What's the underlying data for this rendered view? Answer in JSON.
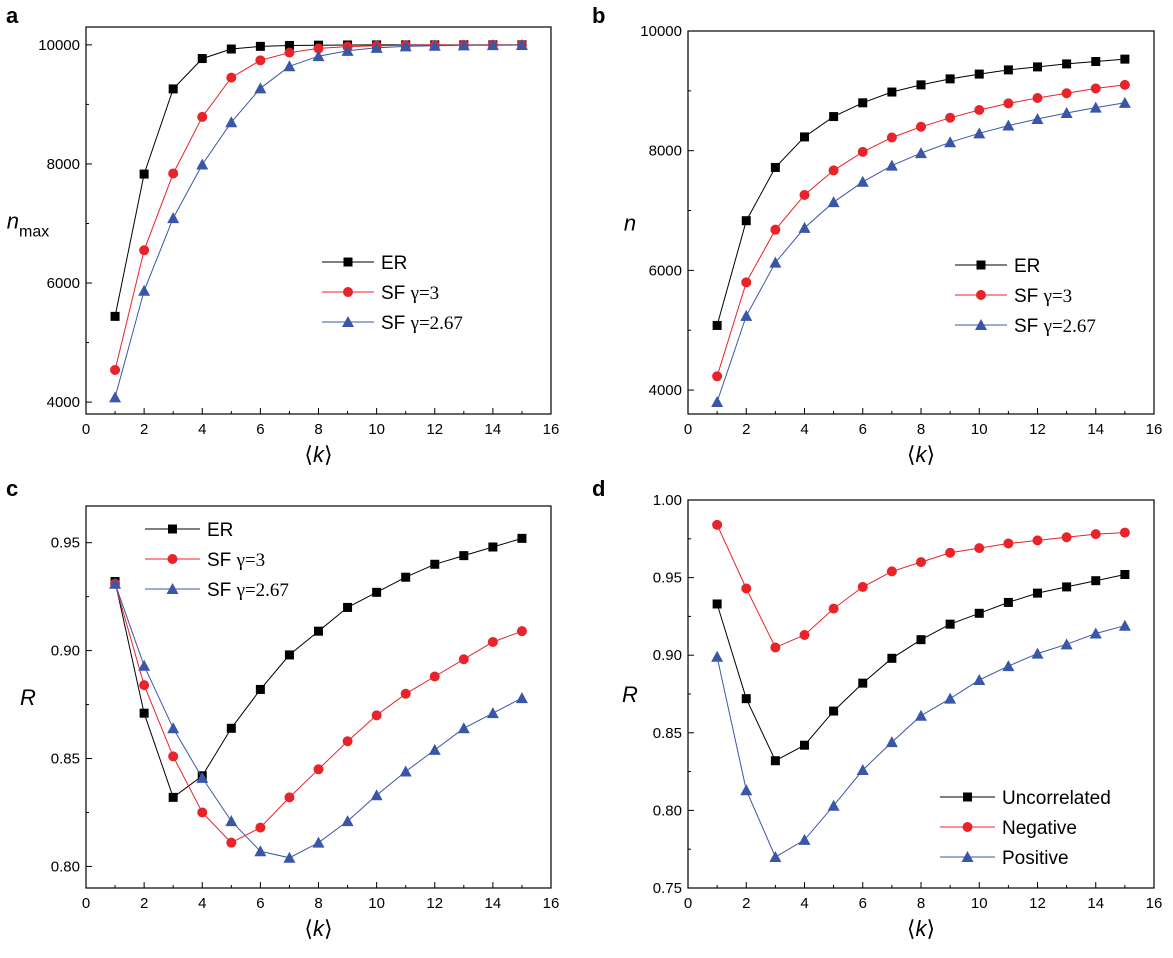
{
  "colors": {
    "ER": "#000000",
    "SF3": "#e8232a",
    "SF267": "#3a57a7",
    "Uncorrelated": "#000000",
    "Negative": "#e8232a",
    "Positive": "#3a57a7"
  },
  "chart_data": [
    {
      "id": "a",
      "panel_label": "a",
      "type": "line",
      "xlabel": "⟨k⟩",
      "ylabel": "n",
      "ylabel_sub": "max",
      "xlim": [
        0,
        16
      ],
      "ylim": [
        3800,
        10300
      ],
      "xticks": [
        0,
        2,
        4,
        6,
        8,
        10,
        12,
        14,
        16
      ],
      "yticks": [
        4000,
        6000,
        8000,
        10000
      ],
      "legend_position": "center-right",
      "series": [
        {
          "name": "ER",
          "name_prefix": "ER",
          "name_greek": "",
          "marker": "square",
          "color_key": "ER",
          "x": [
            1,
            2,
            3,
            4,
            5,
            6,
            7,
            8,
            9,
            10,
            11,
            12,
            13,
            14,
            15
          ],
          "y": [
            5440,
            7830,
            9260,
            9770,
            9930,
            9975,
            9990,
            9995,
            9998,
            9999,
            10000,
            10000,
            10000,
            10000,
            10000
          ]
        },
        {
          "name": "SF γ=3",
          "name_prefix": "SF ",
          "name_greek": "γ=3",
          "marker": "circle",
          "color_key": "SF3",
          "x": [
            1,
            2,
            3,
            4,
            5,
            6,
            7,
            8,
            9,
            10,
            11,
            12,
            13,
            14,
            15
          ],
          "y": [
            4540,
            6550,
            7840,
            8790,
            9450,
            9740,
            9870,
            9940,
            9970,
            9985,
            9993,
            9996,
            9998,
            9999,
            10000
          ]
        },
        {
          "name": "SF γ=2.67",
          "name_prefix": "SF ",
          "name_greek": "γ=2.67",
          "marker": "triangle",
          "color_key": "SF267",
          "x": [
            1,
            2,
            3,
            4,
            5,
            6,
            7,
            8,
            9,
            10,
            11,
            12,
            13,
            14,
            15
          ],
          "y": [
            4080,
            5870,
            7090,
            7990,
            8700,
            9270,
            9640,
            9810,
            9900,
            9950,
            9975,
            9985,
            9992,
            9995,
            9997
          ]
        }
      ]
    },
    {
      "id": "b",
      "panel_label": "b",
      "type": "line",
      "xlabel": "⟨k⟩",
      "ylabel": "n",
      "ylabel_sub": "",
      "xlim": [
        0,
        16
      ],
      "ylim": [
        3600,
        10000
      ],
      "xticks": [
        0,
        2,
        4,
        6,
        8,
        10,
        12,
        14,
        16
      ],
      "yticks": [
        4000,
        6000,
        8000,
        10000
      ],
      "legend_position": "center-right",
      "series": [
        {
          "name": "ER",
          "name_prefix": "ER",
          "name_greek": "",
          "marker": "square",
          "color_key": "ER",
          "x": [
            1,
            2,
            3,
            4,
            5,
            6,
            7,
            8,
            9,
            10,
            11,
            12,
            13,
            14,
            15
          ],
          "y": [
            5080,
            6830,
            7720,
            8230,
            8570,
            8800,
            8980,
            9100,
            9200,
            9280,
            9350,
            9400,
            9450,
            9490,
            9530
          ]
        },
        {
          "name": "SF γ=3",
          "name_prefix": "SF ",
          "name_greek": "γ=3",
          "marker": "circle",
          "color_key": "SF3",
          "x": [
            1,
            2,
            3,
            4,
            5,
            6,
            7,
            8,
            9,
            10,
            11,
            12,
            13,
            14,
            15
          ],
          "y": [
            4230,
            5800,
            6680,
            7260,
            7670,
            7980,
            8220,
            8400,
            8550,
            8680,
            8790,
            8880,
            8960,
            9040,
            9100
          ]
        },
        {
          "name": "SF γ=2.67",
          "name_prefix": "SF ",
          "name_greek": "γ=2.67",
          "marker": "triangle",
          "color_key": "SF267",
          "x": [
            1,
            2,
            3,
            4,
            5,
            6,
            7,
            8,
            9,
            10,
            11,
            12,
            13,
            14,
            15
          ],
          "y": [
            3800,
            5240,
            6130,
            6710,
            7140,
            7480,
            7750,
            7960,
            8140,
            8290,
            8420,
            8530,
            8630,
            8720,
            8800
          ]
        }
      ]
    },
    {
      "id": "c",
      "panel_label": "c",
      "type": "line",
      "xlabel": "⟨k⟩",
      "ylabel": "R",
      "ylabel_sub": "",
      "xlim": [
        0,
        16
      ],
      "ylim": [
        0.79,
        0.967
      ],
      "xticks": [
        0,
        2,
        4,
        6,
        8,
        10,
        12,
        14,
        16
      ],
      "yticks": [
        0.8,
        0.85,
        0.9,
        0.95
      ],
      "yticks_labels": [
        "0.80",
        "0.85",
        "0.90",
        "0.95"
      ],
      "legend_position": "top-left",
      "series": [
        {
          "name": "ER",
          "name_prefix": "ER",
          "name_greek": "",
          "marker": "square",
          "color_key": "ER",
          "x": [
            1,
            2,
            3,
            4,
            5,
            6,
            7,
            8,
            9,
            10,
            11,
            12,
            13,
            14,
            15
          ],
          "y": [
            0.932,
            0.871,
            0.832,
            0.842,
            0.864,
            0.882,
            0.898,
            0.909,
            0.92,
            0.927,
            0.934,
            0.94,
            0.944,
            0.948,
            0.952
          ]
        },
        {
          "name": "SF γ=3",
          "name_prefix": "SF ",
          "name_greek": "γ=3",
          "marker": "circle",
          "color_key": "SF3",
          "x": [
            1,
            2,
            3,
            4,
            5,
            6,
            7,
            8,
            9,
            10,
            11,
            12,
            13,
            14,
            15
          ],
          "y": [
            0.931,
            0.884,
            0.851,
            0.825,
            0.811,
            0.818,
            0.832,
            0.845,
            0.858,
            0.87,
            0.88,
            0.888,
            0.896,
            0.904,
            0.909
          ]
        },
        {
          "name": "SF γ=2.67",
          "name_prefix": "SF ",
          "name_greek": "γ=2.67",
          "marker": "triangle",
          "color_key": "SF267",
          "x": [
            1,
            2,
            3,
            4,
            5,
            6,
            7,
            8,
            9,
            10,
            11,
            12,
            13,
            14,
            15
          ],
          "y": [
            0.931,
            0.893,
            0.864,
            0.841,
            0.821,
            0.807,
            0.804,
            0.811,
            0.821,
            0.833,
            0.844,
            0.854,
            0.864,
            0.871,
            0.878
          ]
        }
      ]
    },
    {
      "id": "d",
      "panel_label": "d",
      "type": "line",
      "xlabel": "⟨k⟩",
      "ylabel": "R",
      "ylabel_sub": "",
      "xlim": [
        0,
        16
      ],
      "ylim": [
        0.75,
        1.0
      ],
      "xticks": [
        0,
        2,
        4,
        6,
        8,
        10,
        12,
        14,
        16
      ],
      "yticks": [
        0.75,
        0.8,
        0.85,
        0.9,
        0.95,
        1.0
      ],
      "yticks_labels": [
        "0.75",
        "0.80",
        "0.85",
        "0.90",
        "0.95",
        "1.00"
      ],
      "legend_position": "bottom-right",
      "series": [
        {
          "name": "Uncorrelated",
          "name_prefix": "Uncorrelated",
          "name_greek": "",
          "marker": "square",
          "color_key": "Uncorrelated",
          "x": [
            1,
            2,
            3,
            4,
            5,
            6,
            7,
            8,
            9,
            10,
            11,
            12,
            13,
            14,
            15
          ],
          "y": [
            0.933,
            0.872,
            0.832,
            0.842,
            0.864,
            0.882,
            0.898,
            0.91,
            0.92,
            0.927,
            0.934,
            0.94,
            0.944,
            0.948,
            0.952
          ]
        },
        {
          "name": "Negative",
          "name_prefix": "Negative",
          "name_greek": "",
          "marker": "circle",
          "color_key": "Negative",
          "x": [
            1,
            2,
            3,
            4,
            5,
            6,
            7,
            8,
            9,
            10,
            11,
            12,
            13,
            14,
            15
          ],
          "y": [
            0.984,
            0.943,
            0.905,
            0.913,
            0.93,
            0.944,
            0.954,
            0.96,
            0.966,
            0.969,
            0.972,
            0.974,
            0.976,
            0.978,
            0.979
          ]
        },
        {
          "name": "Positive",
          "name_prefix": "Positive",
          "name_greek": "",
          "marker": "triangle",
          "color_key": "Positive",
          "x": [
            1,
            2,
            3,
            4,
            5,
            6,
            7,
            8,
            9,
            10,
            11,
            12,
            13,
            14,
            15
          ],
          "y": [
            0.899,
            0.813,
            0.77,
            0.781,
            0.803,
            0.826,
            0.844,
            0.861,
            0.872,
            0.884,
            0.893,
            0.901,
            0.907,
            0.914,
            0.919
          ]
        }
      ]
    }
  ]
}
